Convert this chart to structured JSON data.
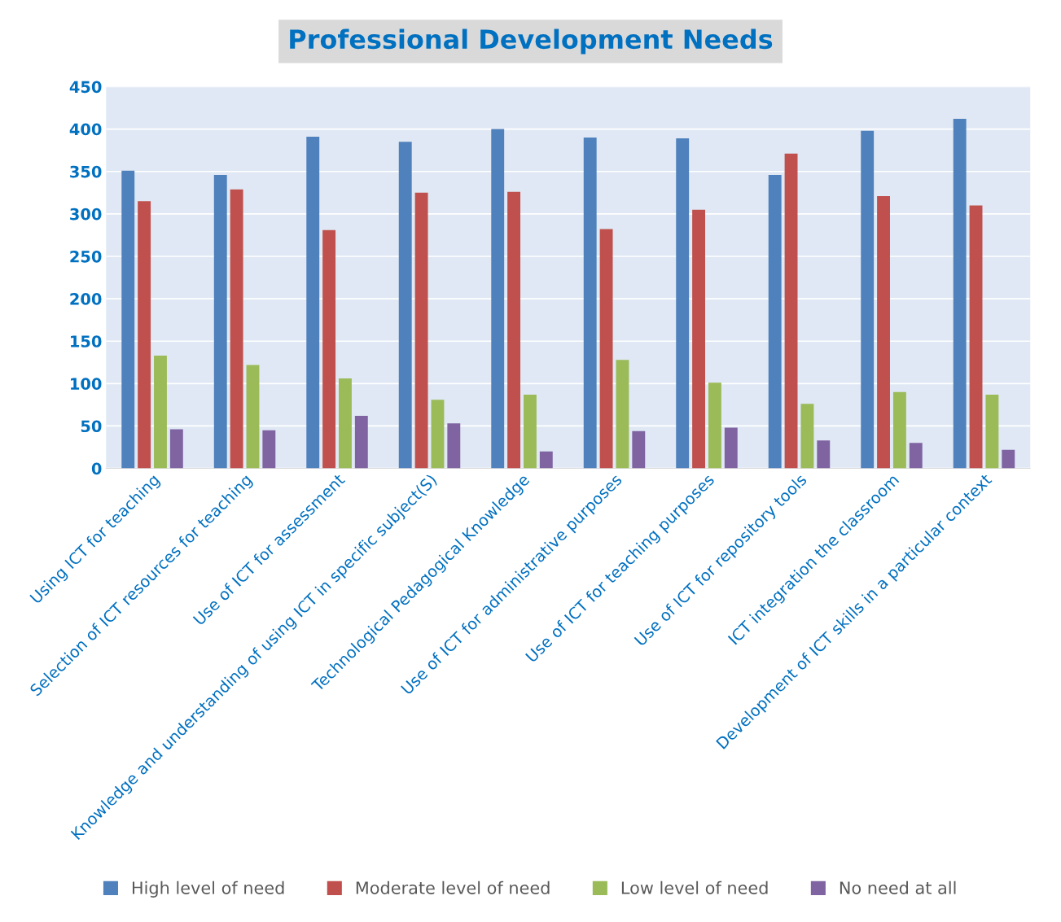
{
  "chart_data": {
    "type": "bar",
    "title": "Professional Development Needs",
    "categories": [
      "Using ICT for teaching",
      "Selection of ICT resources for teaching",
      "Use of ICT for assessment",
      "Knowledge and understanding of using ICT in specific subject(S)",
      "Technological Pedagogical Knowledge",
      "Use of ICT for administrative purposes",
      "Use of ICT for teaching purposes",
      "Use of ICT for repository tools",
      "ICT integration the classroom",
      "Development of ICT skills in a particular context"
    ],
    "series": [
      {
        "name": "High level of need",
        "color": "#4f81bd",
        "values": [
          351,
          346,
          391,
          385,
          400,
          390,
          389,
          346,
          398,
          412
        ]
      },
      {
        "name": "Moderate level of need",
        "color": "#c0504d",
        "values": [
          315,
          329,
          281,
          325,
          326,
          282,
          305,
          371,
          321,
          310
        ]
      },
      {
        "name": "Low level of need",
        "color": "#9bbb59",
        "values": [
          133,
          122,
          106,
          81,
          87,
          128,
          101,
          76,
          90,
          87
        ]
      },
      {
        "name": "No need at all",
        "color": "#8064a2",
        "values": [
          46,
          45,
          62,
          53,
          20,
          44,
          48,
          33,
          30,
          22
        ]
      }
    ],
    "ylim": [
      0,
      450
    ],
    "yticks": [
      0,
      50,
      100,
      150,
      200,
      250,
      300,
      350,
      400,
      450
    ],
    "grid": "y",
    "legend": "bottom"
  }
}
